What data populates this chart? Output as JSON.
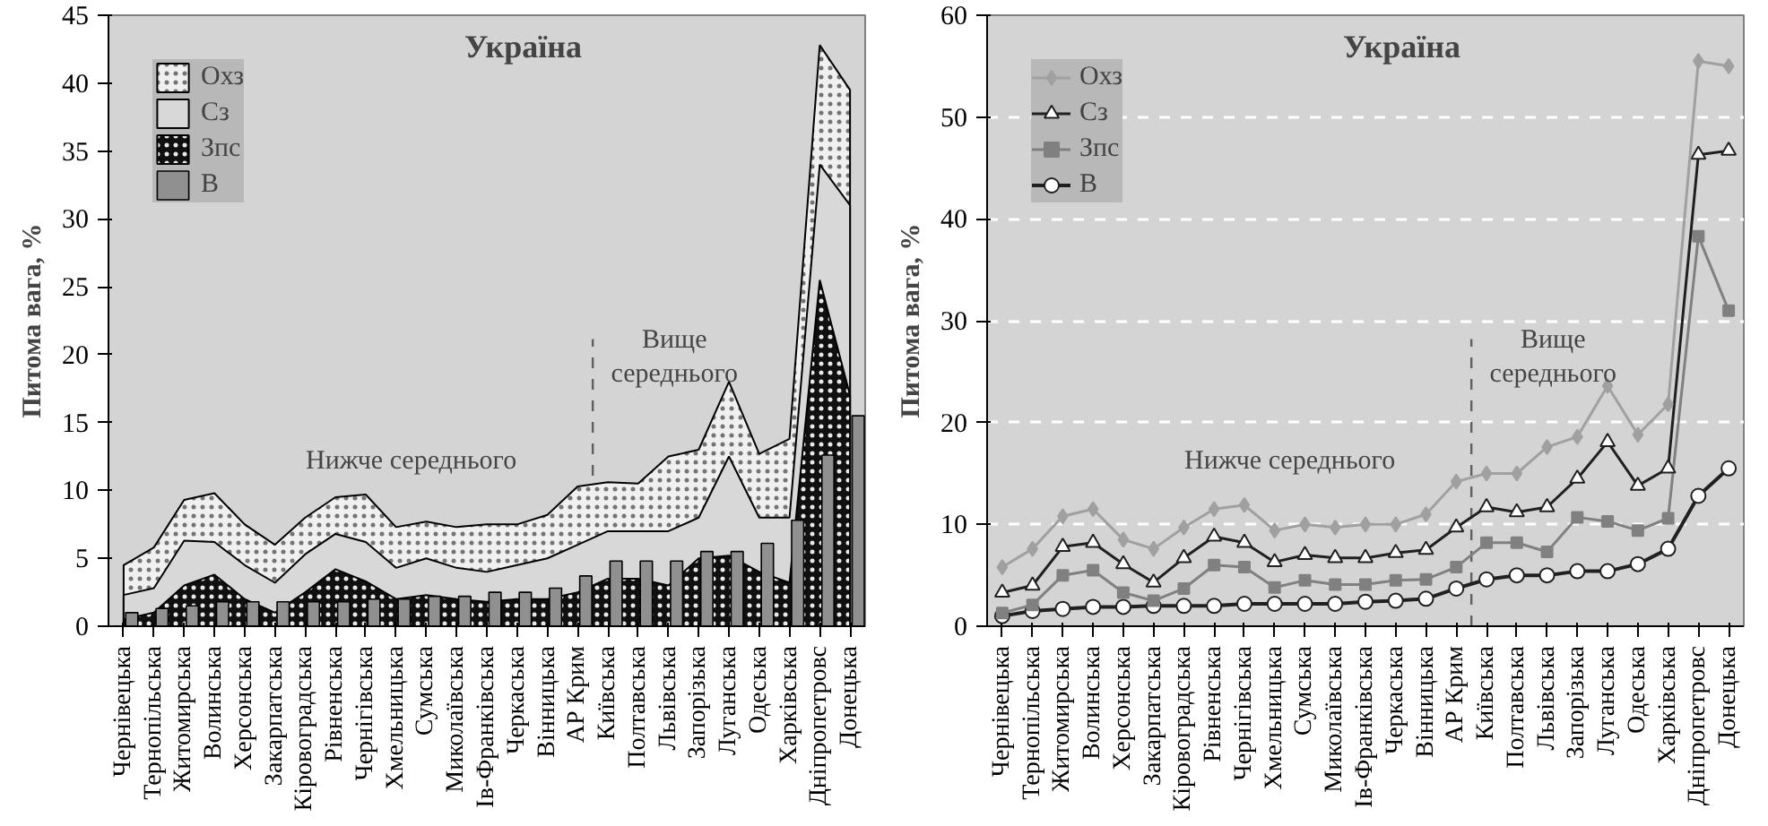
{
  "chart_data": [
    {
      "type": "area",
      "title": "Україна",
      "ylabel": "Питома вага, %",
      "categories": [
        "Чернівецька",
        "Тернопільська",
        "Житомирська",
        "Волинська",
        "Херсонська",
        "Закарпатська",
        "Кіровоградська",
        "Рівненська",
        "Чернігівська",
        "Хмельницька",
        "Сумська",
        "Миколаївська",
        "Ів-Франківська",
        "Черкаська",
        "Вінницька",
        "АР Крим",
        "Київська",
        "Полтавська",
        "Львівська",
        "Запорізька",
        "Луганська",
        "Одеська",
        "Харківська",
        "Дніпропетровс",
        "Донецька"
      ],
      "series": [
        {
          "name": "Охз",
          "type": "area",
          "color": "#f0f0f0",
          "values": [
            4.5,
            5.8,
            9.3,
            9.8,
            7.5,
            6.0,
            8.0,
            9.5,
            9.7,
            7.3,
            7.7,
            7.3,
            7.5,
            7.5,
            8.2,
            10.3,
            10.6,
            10.5,
            12.5,
            13.0,
            18.0,
            12.7,
            13.8,
            42.8,
            39.5
          ]
        },
        {
          "name": "Сз",
          "type": "area",
          "color": "#d8d8d8",
          "values": [
            2.3,
            2.8,
            6.3,
            6.2,
            4.5,
            3.2,
            5.3,
            6.8,
            6.2,
            4.3,
            5.0,
            4.3,
            4.0,
            4.5,
            5.0,
            6.0,
            7.0,
            7.0,
            7.0,
            8.0,
            12.5,
            8.0,
            8.0,
            34.0,
            31.0
          ]
        },
        {
          "name": "Зпс",
          "type": "area",
          "color": "#101010",
          "values": [
            0.5,
            1.0,
            3.0,
            3.8,
            2.0,
            1.0,
            2.5,
            4.2,
            3.3,
            2.0,
            2.3,
            2.0,
            1.8,
            2.0,
            2.0,
            2.5,
            3.5,
            3.5,
            3.0,
            5.0,
            5.2,
            4.0,
            3.2,
            25.5,
            17.0
          ]
        },
        {
          "name": "В",
          "type": "bar",
          "color": "#909090",
          "values": [
            1.0,
            1.3,
            1.5,
            1.8,
            1.8,
            1.8,
            1.8,
            1.8,
            2.0,
            2.0,
            2.2,
            2.2,
            2.5,
            2.5,
            2.8,
            3.7,
            4.8,
            4.8,
            4.8,
            5.5,
            5.5,
            6.1,
            7.8,
            12.6,
            15.5
          ]
        }
      ],
      "ylim": [
        0,
        45
      ],
      "yticks": [
        0,
        5,
        10,
        15,
        20,
        25,
        30,
        35,
        40,
        45
      ],
      "grid": false,
      "legend": "top left",
      "ref_lines": [
        {
          "axis": "x",
          "value": "Київська",
          "line_style": "dashed",
          "color": "#606060"
        }
      ],
      "annotations": [
        "Нижче середнього",
        "Вище\nсереднього"
      ]
    },
    {
      "type": "line",
      "title": "Україна",
      "ylabel": "Питома вага, %",
      "categories": [
        "Чернівецька",
        "Тернопільська",
        "Житомирська",
        "Волинська",
        "Херсонська",
        "Закарпатська",
        "Кіровоградська",
        "Рівненська",
        "Чернігівська",
        "Хмельницька",
        "Сумська",
        "Миколаївська",
        "Ів-Франківська",
        "Черкаська",
        "Вінницька",
        "АР Крим",
        "Київська",
        "Полтавська",
        "Львівська",
        "Запорізька",
        "Луганська",
        "Одеська",
        "Харківська",
        "Дніпропетровс",
        "Донецька"
      ],
      "series": [
        {
          "name": "Охз",
          "color": "#a0a0a0",
          "marker": "diamond",
          "values": [
            5.8,
            7.6,
            10.8,
            11.5,
            8.5,
            7.6,
            9.7,
            11.5,
            11.9,
            9.4,
            10.0,
            9.7,
            10.0,
            10.0,
            11.0,
            14.2,
            15.0,
            15.0,
            17.6,
            18.6,
            23.6,
            18.8,
            21.8,
            55.5,
            55.0
          ]
        },
        {
          "name": "Сз",
          "color": "#202020",
          "marker": "triangle",
          "values": [
            3.3,
            4.0,
            7.8,
            8.2,
            6.1,
            4.3,
            6.7,
            8.8,
            8.2,
            6.3,
            7.0,
            6.7,
            6.7,
            7.2,
            7.5,
            9.7,
            11.7,
            11.2,
            11.7,
            14.5,
            18.1,
            13.8,
            15.5,
            46.3,
            46.7
          ]
        },
        {
          "name": "Зпс",
          "color": "#808080",
          "marker": "square",
          "values": [
            1.3,
            2.1,
            5.0,
            5.5,
            3.3,
            2.5,
            3.7,
            6.0,
            5.8,
            3.8,
            4.5,
            4.1,
            4.1,
            4.5,
            4.6,
            5.8,
            8.2,
            8.2,
            7.3,
            10.7,
            10.3,
            9.4,
            10.6,
            38.3,
            31.0
          ]
        },
        {
          "name": "В",
          "color": "#202020",
          "marker": "circle",
          "values": [
            1.0,
            1.5,
            1.7,
            1.9,
            1.9,
            2.0,
            2.0,
            2.0,
            2.2,
            2.2,
            2.2,
            2.2,
            2.4,
            2.5,
            2.7,
            3.7,
            4.6,
            5.0,
            5.0,
            5.4,
            5.4,
            6.1,
            7.6,
            12.8,
            15.5
          ]
        }
      ],
      "ylim": [
        0,
        60
      ],
      "yticks": [
        0,
        10,
        20,
        30,
        40,
        50,
        60
      ],
      "grid": "y",
      "legend": "top left",
      "line_style": "solid",
      "ref_lines": [
        {
          "axis": "x",
          "value": "Київська",
          "line_style": "dashed",
          "color": "#606060"
        }
      ],
      "annotations": [
        "Нижче середнього",
        "Вище\nсереднього"
      ]
    }
  ]
}
